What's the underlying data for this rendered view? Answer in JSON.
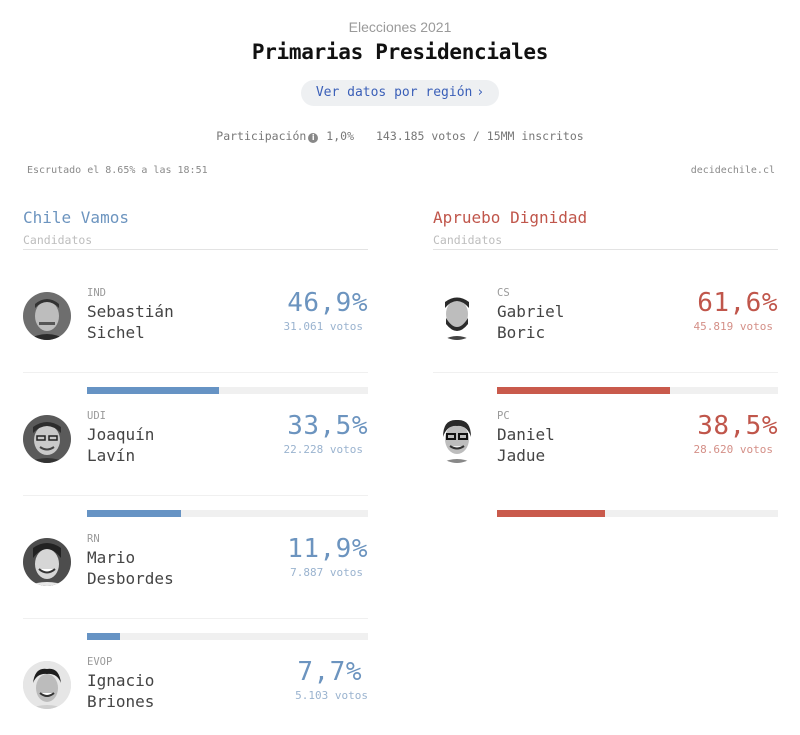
{
  "header": {
    "supertitle": "Elecciones 2021",
    "title": "Primarias Presidenciales",
    "region_button": "Ver datos por región",
    "region_button_icon": "chevron-right-icon"
  },
  "participation": {
    "label": "Participación",
    "info_icon": "info-icon",
    "percent": "1,0%",
    "detail": "143.185 votos / 15MM inscritos"
  },
  "meta": {
    "scrutiny": "Escrutado el 8.65% a las 18:51",
    "source": "decidechile.cl"
  },
  "colors": {
    "chile_vamos": "#6c94bf",
    "apruebo_dignidad": "#c0564b",
    "link": "#3a5fb8"
  },
  "coalitions": [
    {
      "name": "Chile Vamos",
      "candidates_label": "Candidatos",
      "candidates": [
        {
          "party": "IND",
          "first": "Sebastián",
          "last": "Sichel",
          "percent": "46,9%",
          "share": 46.9,
          "votes": "31.061 votos"
        },
        {
          "party": "UDI",
          "first": "Joaquín",
          "last": "Lavín",
          "percent": "33,5%",
          "share": 33.5,
          "votes": "22.228 votos"
        },
        {
          "party": "RN",
          "first": "Mario",
          "last": "Desbordes",
          "percent": "11,9%",
          "share": 11.9,
          "votes": "7.887 votos"
        },
        {
          "party": "EVOP",
          "first": "Ignacio",
          "last": "Briones",
          "percent": "7,7%",
          "share": 7.7,
          "votes": "5.103 votos"
        }
      ]
    },
    {
      "name": "Apruebo Dignidad",
      "candidates_label": "Candidatos",
      "candidates": [
        {
          "party": "CS",
          "first": "Gabriel",
          "last": "Boric",
          "percent": "61,6%",
          "share": 61.6,
          "votes": "45.819 votos"
        },
        {
          "party": "PC",
          "first": "Daniel",
          "last": "Jadue",
          "percent": "38,5%",
          "share": 38.5,
          "votes": "28.620 votos"
        }
      ]
    }
  ]
}
